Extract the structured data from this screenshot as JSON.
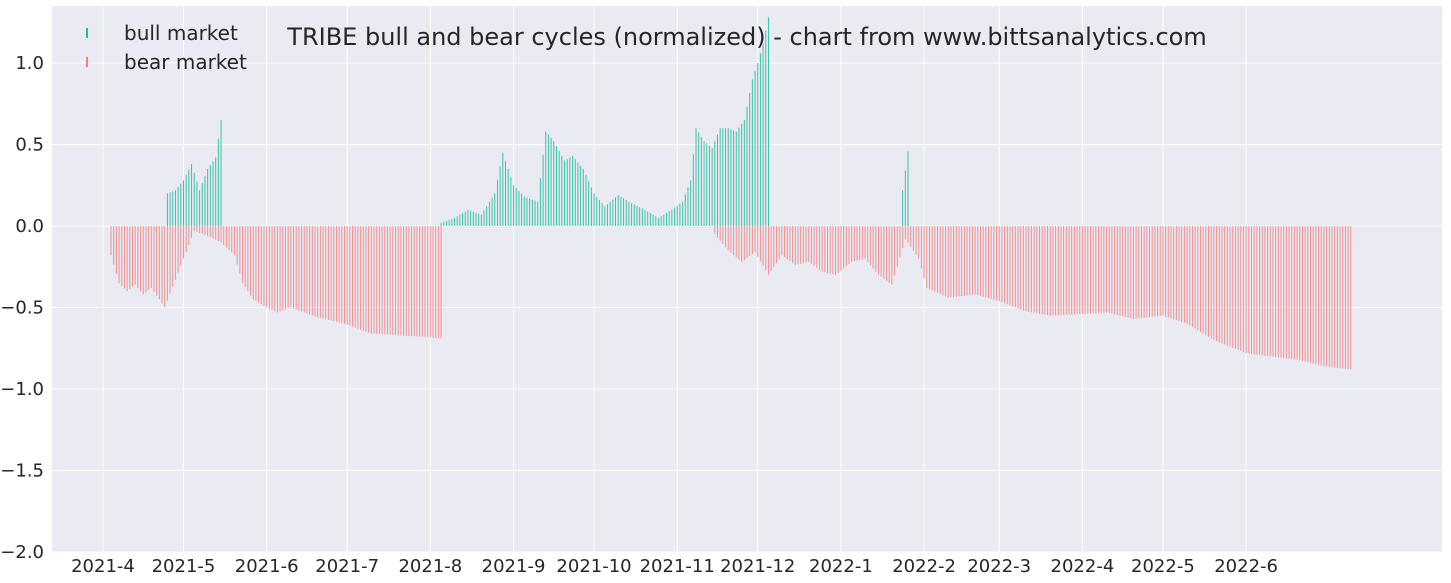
{
  "chart_data": {
    "type": "bar",
    "title": "TRIBE bull and bear cycles (normalized)  - chart from www.bittsanalytics.com",
    "xlabel": "",
    "ylabel": "",
    "ylim": [
      -2.0,
      1.35
    ],
    "xlim": [
      "2021-03-13",
      "2022-08-13"
    ],
    "grid": true,
    "legend_position": "top-left",
    "y_ticks": [
      "1.0",
      "0.5",
      "0.0",
      "−0.5",
      "−1.0",
      "−1.5",
      "−2.0"
    ],
    "x_ticks": [
      {
        "date": "2021-04-01",
        "label": "2021-4"
      },
      {
        "date": "2021-05-01",
        "label": "2021-5"
      },
      {
        "date": "2021-06-01",
        "label": "2021-6"
      },
      {
        "date": "2021-07-01",
        "label": "2021-7"
      },
      {
        "date": "2021-08-01",
        "label": "2021-8"
      },
      {
        "date": "2021-09-01",
        "label": "2021-9"
      },
      {
        "date": "2021-10-01",
        "label": "2021-10"
      },
      {
        "date": "2021-11-01",
        "label": "2021-11"
      },
      {
        "date": "2021-12-01",
        "label": "2021-12"
      },
      {
        "date": "2022-01-01",
        "label": "2022-1"
      },
      {
        "date": "2022-02-01",
        "label": "2022-2"
      },
      {
        "date": "2022-03-01",
        "label": "2022-3"
      },
      {
        "date": "2022-04-01",
        "label": "2022-4"
      },
      {
        "date": "2022-05-01",
        "label": "2022-5"
      },
      {
        "date": "2022-06-01",
        "label": "2022-6"
      }
    ],
    "series": [
      {
        "name": "bear market",
        "color": "#f08080",
        "points": [
          [
            "2021-04-04",
            -0.18
          ],
          [
            "2021-04-07",
            -0.35
          ],
          [
            "2021-04-10",
            -0.4
          ],
          [
            "2021-04-13",
            -0.36
          ],
          [
            "2021-04-16",
            -0.42
          ],
          [
            "2021-04-19",
            -0.38
          ],
          [
            "2021-04-22",
            -0.45
          ],
          [
            "2021-04-24",
            -0.5
          ],
          [
            "2021-05-05",
            -0.03
          ],
          [
            "2021-05-10",
            -0.06
          ],
          [
            "2021-05-15",
            -0.1
          ],
          [
            "2021-05-20",
            -0.18
          ],
          [
            "2021-05-23",
            -0.35
          ],
          [
            "2021-05-27",
            -0.45
          ],
          [
            "2021-06-01",
            -0.5
          ],
          [
            "2021-06-05",
            -0.53
          ],
          [
            "2021-06-10",
            -0.5
          ],
          [
            "2021-06-20",
            -0.56
          ],
          [
            "2021-06-30",
            -0.6
          ],
          [
            "2021-07-10",
            -0.66
          ],
          [
            "2021-07-20",
            -0.67
          ],
          [
            "2021-07-30",
            -0.68
          ],
          [
            "2021-08-05",
            -0.69
          ],
          [
            "2021-11-15",
            -0.05
          ],
          [
            "2021-11-20",
            -0.15
          ],
          [
            "2021-11-25",
            -0.22
          ],
          [
            "2021-11-30",
            -0.16
          ],
          [
            "2021-12-05",
            -0.3
          ],
          [
            "2021-12-10",
            -0.18
          ],
          [
            "2021-12-15",
            -0.24
          ],
          [
            "2021-12-20",
            -0.22
          ],
          [
            "2021-12-25",
            -0.28
          ],
          [
            "2021-12-30",
            -0.3
          ],
          [
            "2022-01-05",
            -0.22
          ],
          [
            "2022-01-10",
            -0.2
          ],
          [
            "2022-01-15",
            -0.3
          ],
          [
            "2022-01-20",
            -0.36
          ],
          [
            "2022-01-25",
            -0.08
          ],
          [
            "2022-01-30",
            -0.2
          ],
          [
            "2022-02-02",
            -0.38
          ],
          [
            "2022-02-10",
            -0.44
          ],
          [
            "2022-02-20",
            -0.42
          ],
          [
            "2022-03-01",
            -0.46
          ],
          [
            "2022-03-10",
            -0.52
          ],
          [
            "2022-03-20",
            -0.55
          ],
          [
            "2022-04-01",
            -0.54
          ],
          [
            "2022-04-10",
            -0.53
          ],
          [
            "2022-04-20",
            -0.57
          ],
          [
            "2022-05-01",
            -0.55
          ],
          [
            "2022-05-10",
            -0.6
          ],
          [
            "2022-05-20",
            -0.7
          ],
          [
            "2022-06-01",
            -0.78
          ],
          [
            "2022-06-10",
            -0.8
          ],
          [
            "2022-06-20",
            -0.82
          ],
          [
            "2022-06-30",
            -0.86
          ],
          [
            "2022-07-10",
            -0.88
          ]
        ]
      },
      {
        "name": "bull market",
        "color": "#1abc9c",
        "points": [
          [
            "2021-04-25",
            0.2
          ],
          [
            "2021-04-28",
            0.22
          ],
          [
            "2021-05-01",
            0.28
          ],
          [
            "2021-05-04",
            0.38
          ],
          [
            "2021-05-07",
            0.22
          ],
          [
            "2021-05-10",
            0.35
          ],
          [
            "2021-05-13",
            0.42
          ],
          [
            "2021-05-15",
            0.65
          ],
          [
            "2021-08-05",
            0.02
          ],
          [
            "2021-08-10",
            0.05
          ],
          [
            "2021-08-15",
            0.1
          ],
          [
            "2021-08-20",
            0.07
          ],
          [
            "2021-08-25",
            0.2
          ],
          [
            "2021-08-28",
            0.45
          ],
          [
            "2021-09-01",
            0.25
          ],
          [
            "2021-09-05",
            0.18
          ],
          [
            "2021-09-10",
            0.15
          ],
          [
            "2021-09-13",
            0.58
          ],
          [
            "2021-09-16",
            0.52
          ],
          [
            "2021-09-20",
            0.4
          ],
          [
            "2021-09-23",
            0.43
          ],
          [
            "2021-09-27",
            0.35
          ],
          [
            "2021-10-01",
            0.2
          ],
          [
            "2021-10-05",
            0.12
          ],
          [
            "2021-10-10",
            0.19
          ],
          [
            "2021-10-15",
            0.14
          ],
          [
            "2021-10-20",
            0.1
          ],
          [
            "2021-10-25",
            0.05
          ],
          [
            "2021-10-30",
            0.1
          ],
          [
            "2021-11-03",
            0.15
          ],
          [
            "2021-11-06",
            0.28
          ],
          [
            "2021-11-08",
            0.6
          ],
          [
            "2021-11-11",
            0.52
          ],
          [
            "2021-11-14",
            0.48
          ],
          [
            "2021-11-17",
            0.6
          ],
          [
            "2021-11-20",
            0.6
          ],
          [
            "2021-11-23",
            0.58
          ],
          [
            "2021-11-26",
            0.65
          ],
          [
            "2021-11-29",
            0.9
          ],
          [
            "2021-12-01",
            1.0
          ],
          [
            "2021-12-03",
            1.12
          ],
          [
            "2021-12-05",
            1.28
          ],
          [
            "2022-01-24",
            0.22
          ],
          [
            "2022-01-26",
            0.46
          ]
        ]
      }
    ]
  }
}
